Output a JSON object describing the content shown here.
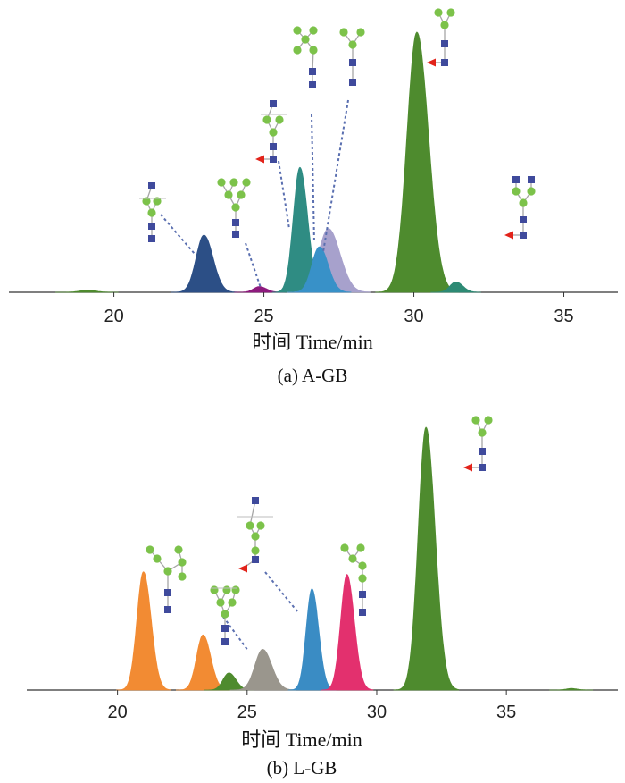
{
  "colors": {
    "green_circle": "#7cc24a",
    "blue_square": "#3f4a9c",
    "red_triangle": "#e2231a",
    "leader": "#5a6fb0"
  },
  "glycan_icons": [
    "green-circle-mannose",
    "blue-square-glcnac",
    "red-triangle-fucose"
  ],
  "chart_data": [
    {
      "type": "area",
      "caption": "(a) A-GB",
      "xlabel": "时间 Time/min",
      "ylabel": "",
      "xlim": [
        16.5,
        36.8
      ],
      "xticks": [
        20,
        25,
        30,
        35
      ],
      "ylim": [
        0,
        1
      ],
      "grid": false,
      "series": [
        {
          "center": 23.0,
          "width": 0.26,
          "height": 0.22,
          "color": "#2c4f86"
        },
        {
          "center": 24.85,
          "width": 0.2,
          "height": 0.022,
          "color": "#8e1a7e"
        },
        {
          "center": 26.2,
          "width": 0.22,
          "height": 0.48,
          "color": "#2f8c83"
        },
        {
          "center": 27.15,
          "width": 0.33,
          "height": 0.245,
          "color": "#a7a1cc"
        },
        {
          "center": 26.85,
          "width": 0.25,
          "height": 0.175,
          "color": "#3891c8"
        },
        {
          "center": 30.1,
          "width": 0.33,
          "height": 1.0,
          "color": "#4e8b2e"
        },
        {
          "center": 31.4,
          "width": 0.2,
          "height": 0.04,
          "color": "#2d8a74"
        },
        {
          "center": 19.1,
          "width": 0.25,
          "height": 0.008,
          "color": "#4e8b2e"
        }
      ]
    },
    {
      "type": "area",
      "caption": "(b) L-GB",
      "xlabel": "时间 Time/min",
      "ylabel": "",
      "xlim": [
        16.5,
        39.3
      ],
      "xticks": [
        20,
        25,
        30,
        35
      ],
      "ylim": [
        0,
        1
      ],
      "grid": false,
      "series": [
        {
          "center": 21.0,
          "width": 0.25,
          "height": 0.45,
          "color": "#f28b33"
        },
        {
          "center": 23.3,
          "width": 0.25,
          "height": 0.21,
          "color": "#f28b33"
        },
        {
          "center": 24.3,
          "width": 0.23,
          "height": 0.065,
          "color": "#4e8b2e"
        },
        {
          "center": 25.6,
          "width": 0.3,
          "height": 0.155,
          "color": "#9a968d"
        },
        {
          "center": 27.5,
          "width": 0.22,
          "height": 0.385,
          "color": "#3a8cc4"
        },
        {
          "center": 28.85,
          "width": 0.24,
          "height": 0.44,
          "color": "#e3306e"
        },
        {
          "center": 31.9,
          "width": 0.3,
          "height": 1.0,
          "color": "#4e8b2e"
        },
        {
          "center": 37.5,
          "width": 0.2,
          "height": 0.006,
          "color": "#4e8b2e"
        }
      ]
    }
  ]
}
